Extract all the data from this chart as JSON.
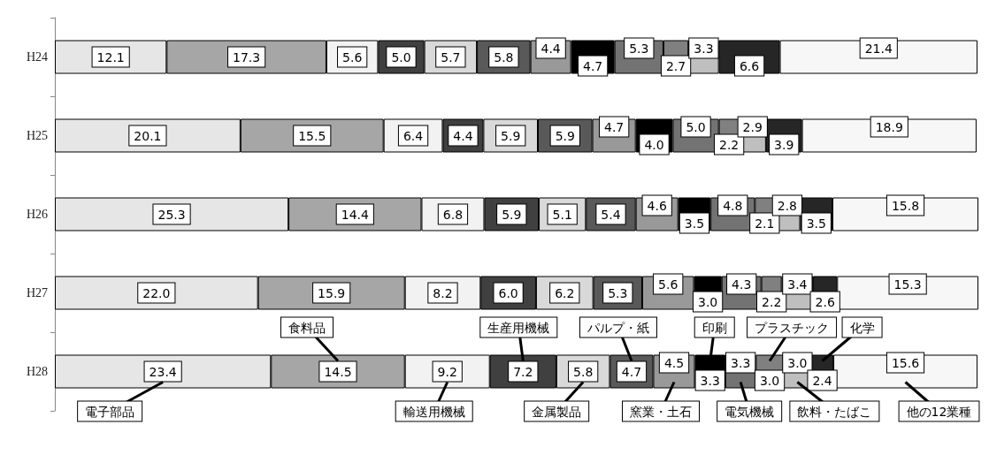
{
  "chart_data": {
    "type": "bar",
    "orientation": "horizontal",
    "stacked": true,
    "tick_labels": "y",
    "xlim": [
      0,
      100
    ],
    "legend": "bottom",
    "categories": [
      "H24",
      "H25",
      "H26",
      "H27",
      "H28"
    ],
    "series": [
      {
        "name": "電子部品",
        "color": "#e6e6e6",
        "values": [
          12.1,
          20.1,
          25.3,
          22.0,
          23.4
        ],
        "value_labels": [
          "12.1",
          "20.1",
          "25.3",
          "22.0",
          "23.4"
        ]
      },
      {
        "name": "食料品",
        "color": "#a6a6a6",
        "values": [
          17.3,
          15.5,
          14.4,
          15.9,
          14.5
        ],
        "value_labels": [
          "17.3",
          "15.5",
          "14.4",
          "15.9",
          "14.5"
        ]
      },
      {
        "name": "輸送用機械",
        "color": "#f2f2f2",
        "values": [
          5.6,
          6.4,
          6.8,
          8.2,
          9.2
        ],
        "value_labels": [
          "5.6",
          "6.4",
          "6.8",
          "8.2",
          "9.2"
        ]
      },
      {
        "name": "生産用機械",
        "color": "#404040",
        "values": [
          5.0,
          4.4,
          5.9,
          6.0,
          7.2
        ],
        "value_labels": [
          "5.0",
          "4.4",
          "5.9",
          "6.0",
          "7.2"
        ]
      },
      {
        "name": "金属製品",
        "color": "#d9d9d9",
        "values": [
          5.7,
          5.9,
          5.1,
          6.2,
          5.8
        ],
        "value_labels": [
          "5.7",
          "5.9",
          "5.1",
          "6.2",
          "5.8"
        ]
      },
      {
        "name": "パルプ・紙",
        "color": "#595959",
        "values": [
          5.8,
          5.9,
          5.4,
          5.3,
          4.7
        ],
        "value_labels": [
          "5.8",
          "5.9",
          "5.4",
          "5.3",
          "4.7"
        ]
      },
      {
        "name": "窯業・土石",
        "color": "#999999",
        "values": [
          4.4,
          4.7,
          4.6,
          5.6,
          4.5
        ],
        "value_labels": [
          "4.4",
          "4.7",
          "4.6",
          "5.6",
          "4.5"
        ]
      },
      {
        "name": "印刷",
        "color": "#000000",
        "values": [
          4.7,
          4.0,
          3.5,
          3.0,
          3.3
        ],
        "value_labels": [
          "4.7",
          "4.0",
          "3.5",
          "3.0",
          "3.3"
        ]
      },
      {
        "name": "電気機械",
        "color": "#737373",
        "values": [
          5.3,
          5.0,
          4.8,
          4.3,
          3.3
        ],
        "value_labels": [
          "5.3",
          "5.0",
          "4.8",
          "4.3",
          "3.3"
        ]
      },
      {
        "name": "プラスチック",
        "color": "#808080",
        "values": [
          2.7,
          2.2,
          2.1,
          2.2,
          3.0
        ],
        "value_labels": [
          "2.7",
          "2.2",
          "2.1",
          "2.2",
          "3.0"
        ]
      },
      {
        "name": "飲料・たばこ",
        "color": "#bfbfbf",
        "values": [
          3.3,
          2.9,
          2.8,
          3.4,
          3.0
        ],
        "value_labels": [
          "3.3",
          "2.9",
          "2.8",
          "3.4",
          "3.0"
        ]
      },
      {
        "name": "化学",
        "color": "#262626",
        "values": [
          6.6,
          3.9,
          3.5,
          2.6,
          2.4
        ],
        "value_labels": [
          "6.6",
          "3.9",
          "3.5",
          "2.6",
          "2.4"
        ]
      },
      {
        "name": "他の12業種",
        "color": "#f7f7f7",
        "values": [
          21.4,
          18.9,
          15.8,
          15.3,
          15.6
        ],
        "value_labels": [
          "21.4",
          "18.9",
          "15.8",
          "15.3",
          "15.6"
        ]
      }
    ]
  }
}
